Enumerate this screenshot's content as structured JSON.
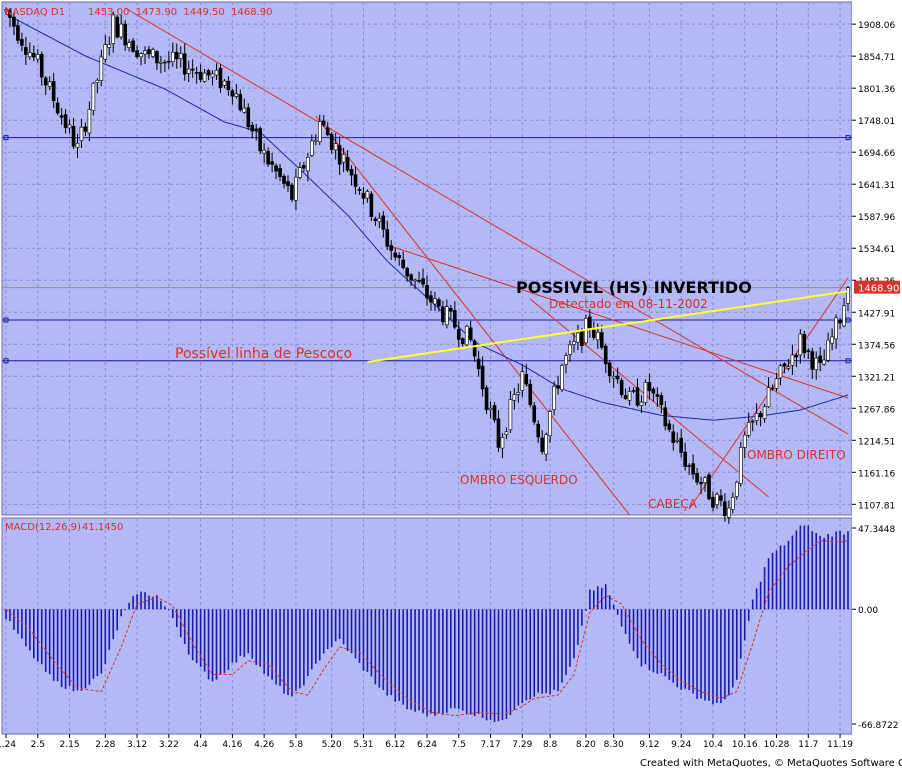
{
  "window": {
    "symbol_label": "NASDAQ D1",
    "ohlc_label": "1453.00  1473.90  1449.50  1468.90",
    "footer": "Created with MetaQuotes, © MetaQuotes Software Corp."
  },
  "colors": {
    "panel_bg": "#b4b8f5",
    "grid": "#8a8ad0",
    "bull_candle": "#ffffff",
    "bear_candle": "#000000",
    "moving_average": "#1f2d9e",
    "horizontal_level": "#1a1aa8",
    "trendline": "#d8322a",
    "neckline": "#ffff33",
    "annotation_text": "#d8322a",
    "macd_histogram": "#1a1aa8",
    "macd_signal": "#d8322a",
    "current_price_tag": "#d8322a"
  },
  "annotations": {
    "pattern_title": "POSSIVEL (HS) INVERTIDO",
    "detected": "Detectado em 08-11-2002",
    "neckline_label": "Possível linha de Pescoço",
    "left_shoulder": "OMBRO ESQUERDO",
    "head": "CABEÇA",
    "right_shoulder": "OMBRO DIREITO"
  },
  "chart_data": [
    {
      "type": "candlestick",
      "title": "NASDAQ D1",
      "ylim": [
        1090,
        1945
      ],
      "ytick_labels": [
        "1908.06",
        "1854.71",
        "1801.36",
        "1748.01",
        "1694.66",
        "1641.31",
        "1587.96",
        "1534.61",
        "1481.26",
        "1427.91",
        "1374.56",
        "1321.21",
        "1267.86",
        "1214.51",
        "1161.16",
        "1107.81"
      ],
      "ytick_values": [
        1908.06,
        1854.71,
        1801.36,
        1748.01,
        1694.66,
        1641.31,
        1587.96,
        1534.61,
        1481.26,
        1427.91,
        1374.56,
        1321.21,
        1267.86,
        1214.51,
        1161.16,
        1107.81
      ],
      "last_price_label": "1468.90",
      "last_price": 1468.9,
      "horizontal_levels": [
        1719,
        1415,
        1347
      ],
      "current_price_line": 1468.9,
      "moving_average_anchors": [
        [
          0,
          1925
        ],
        [
          20,
          1855
        ],
        [
          40,
          1800
        ],
        [
          55,
          1745
        ],
        [
          64,
          1728
        ],
        [
          75,
          1660
        ],
        [
          86,
          1590
        ],
        [
          96,
          1513
        ],
        [
          110,
          1428
        ],
        [
          118,
          1378
        ],
        [
          130,
          1340
        ],
        [
          140,
          1300
        ],
        [
          150,
          1278
        ],
        [
          165,
          1256
        ],
        [
          178,
          1248
        ],
        [
          190,
          1255
        ],
        [
          200,
          1265
        ],
        [
          212,
          1290
        ]
      ],
      "price_path": [
        [
          0,
          1930
        ],
        [
          8,
          1840
        ],
        [
          18,
          1700
        ],
        [
          27,
          1910
        ],
        [
          35,
          1855
        ],
        [
          45,
          1840
        ],
        [
          57,
          1805
        ],
        [
          64,
          1700
        ],
        [
          72,
          1620
        ],
        [
          79,
          1745
        ],
        [
          89,
          1640
        ],
        [
          98,
          1520
        ],
        [
          108,
          1440
        ],
        [
          117,
          1380
        ],
        [
          124,
          1210
        ],
        [
          130,
          1320
        ],
        [
          135,
          1210
        ],
        [
          140,
          1340
        ],
        [
          147,
          1410
        ],
        [
          152,
          1340
        ],
        [
          157,
          1280
        ],
        [
          162,
          1300
        ],
        [
          167,
          1230
        ],
        [
          172,
          1170
        ],
        [
          178,
          1120
        ],
        [
          182,
          1100
        ],
        [
          186,
          1215
        ],
        [
          193,
          1300
        ],
        [
          200,
          1380
        ],
        [
          205,
          1330
        ],
        [
          210,
          1420
        ],
        [
          212,
          1468.9
        ]
      ],
      "trendlines": [
        {
          "from": [
            30,
            1935
          ],
          "to": [
            212,
            1225
          ]
        },
        {
          "from": [
            78,
            1755
          ],
          "to": [
            157,
            1090
          ]
        },
        {
          "from": [
            96,
            1540
          ],
          "to": [
            212,
            1285
          ]
        },
        {
          "from": [
            132,
            1450
          ],
          "to": [
            192,
            1120
          ]
        },
        {
          "from": [
            172,
            1100
          ],
          "to": [
            212,
            1485
          ]
        }
      ],
      "neckline": {
        "from": [
          91,
          1345
        ],
        "to": [
          212,
          1463
        ]
      },
      "xtick_labels": [
        "1.24",
        "2.5",
        "2.15",
        "2.28",
        "3.12",
        "3.22",
        "4.4",
        "4.16",
        "4.26",
        "5.8",
        "5.20",
        "5.31",
        "6.12",
        "6.24",
        "7.5",
        "7.17",
        "7.29",
        "8.8",
        "8.20",
        "8.30",
        "9.12",
        "9.24",
        "10.4",
        "10.16",
        "10.28",
        "11.7",
        "11.19"
      ],
      "xtick_index": [
        0,
        8,
        16,
        25,
        33,
        41,
        49,
        57,
        65,
        73,
        82,
        90,
        98,
        106,
        114,
        122,
        130,
        137,
        146,
        153,
        162,
        170,
        178,
        186,
        194,
        202,
        210
      ]
    },
    {
      "type": "bar",
      "title": "MACD(12,26,9)",
      "value_label": "41.1450",
      "ytick_labels": [
        "47.3448",
        "0.00",
        "-66.8722"
      ],
      "ylim": [
        -66.8722,
        47.3448
      ],
      "histogram_path": [
        [
          0,
          -5
        ],
        [
          6,
          -25
        ],
        [
          12,
          -42
        ],
        [
          18,
          -48
        ],
        [
          24,
          -38
        ],
        [
          29,
          -5
        ],
        [
          33,
          10
        ],
        [
          38,
          8
        ],
        [
          42,
          -5
        ],
        [
          47,
          -30
        ],
        [
          52,
          -42
        ],
        [
          57,
          -32
        ],
        [
          61,
          -25
        ],
        [
          66,
          -40
        ],
        [
          72,
          -52
        ],
        [
          76,
          -40
        ],
        [
          80,
          -25
        ],
        [
          84,
          -18
        ],
        [
          89,
          -32
        ],
        [
          95,
          -48
        ],
        [
          101,
          -58
        ],
        [
          107,
          -62
        ],
        [
          113,
          -58
        ],
        [
          119,
          -62
        ],
        [
          125,
          -66
        ],
        [
          129,
          -55
        ],
        [
          133,
          -50
        ],
        [
          139,
          -48
        ],
        [
          143,
          -30
        ],
        [
          147,
          10
        ],
        [
          151,
          14
        ],
        [
          155,
          -10
        ],
        [
          160,
          -32
        ],
        [
          165,
          -38
        ],
        [
          170,
          -46
        ],
        [
          175,
          -52
        ],
        [
          180,
          -56
        ],
        [
          184,
          -42
        ],
        [
          188,
          5
        ],
        [
          192,
          30
        ],
        [
          197,
          40
        ],
        [
          201,
          50
        ],
        [
          205,
          42
        ],
        [
          210,
          45
        ],
        [
          212,
          45
        ]
      ],
      "signal_path": [
        [
          0,
          0
        ],
        [
          6,
          -12
        ],
        [
          12,
          -30
        ],
        [
          18,
          -46
        ],
        [
          24,
          -48
        ],
        [
          29,
          -22
        ],
        [
          33,
          3
        ],
        [
          38,
          7
        ],
        [
          42,
          2
        ],
        [
          47,
          -20
        ],
        [
          52,
          -38
        ],
        [
          57,
          -38
        ],
        [
          61,
          -30
        ],
        [
          66,
          -32
        ],
        [
          72,
          -48
        ],
        [
          76,
          -50
        ],
        [
          80,
          -35
        ],
        [
          84,
          -22
        ],
        [
          89,
          -25
        ],
        [
          95,
          -40
        ],
        [
          101,
          -52
        ],
        [
          107,
          -60
        ],
        [
          113,
          -62
        ],
        [
          119,
          -60
        ],
        [
          125,
          -61
        ],
        [
          129,
          -58
        ],
        [
          133,
          -52
        ],
        [
          139,
          -50
        ],
        [
          143,
          -38
        ],
        [
          147,
          -2
        ],
        [
          151,
          8
        ],
        [
          155,
          3
        ],
        [
          160,
          -18
        ],
        [
          165,
          -32
        ],
        [
          170,
          -42
        ],
        [
          175,
          -48
        ],
        [
          180,
          -52
        ],
        [
          184,
          -48
        ],
        [
          188,
          -20
        ],
        [
          192,
          10
        ],
        [
          197,
          25
        ],
        [
          201,
          33
        ],
        [
          205,
          40
        ],
        [
          210,
          39
        ],
        [
          212,
          40
        ]
      ]
    }
  ]
}
